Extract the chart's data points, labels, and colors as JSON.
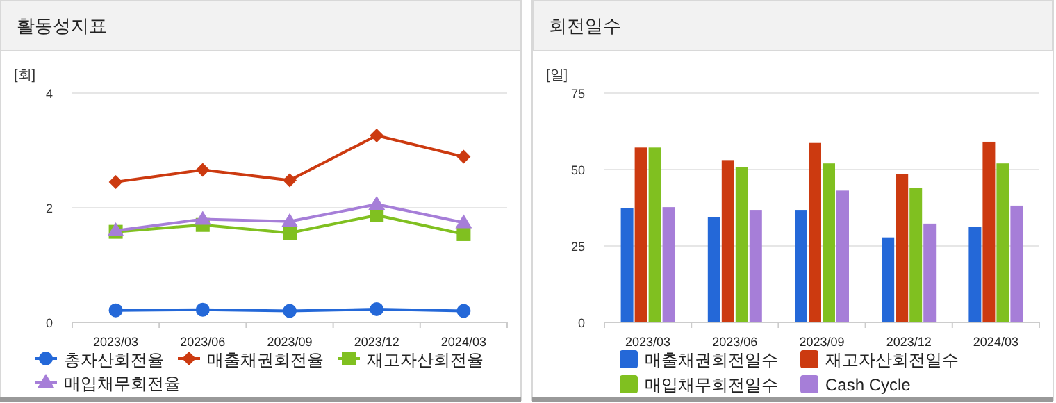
{
  "chart_data": [
    {
      "type": "line",
      "title": "활동성지표",
      "ylabel": "[회]",
      "categories": [
        "2023/03",
        "2023/06",
        "2023/09",
        "2023/12",
        "2024/03"
      ],
      "ylim": [
        0,
        4
      ],
      "yticks": [
        0,
        2,
        4
      ],
      "grid": "y",
      "legend": "bottom",
      "series": [
        {
          "name": "총자산회전율",
          "color": "#2468d8",
          "marker": "circle",
          "values": [
            0.21,
            0.22,
            0.2,
            0.23,
            0.2
          ]
        },
        {
          "name": "매출채권회전율",
          "color": "#cc3a10",
          "marker": "diamond",
          "values": [
            2.45,
            2.66,
            2.48,
            3.26,
            2.89
          ]
        },
        {
          "name": "재고자산회전율",
          "color": "#80c020",
          "marker": "square",
          "values": [
            1.58,
            1.7,
            1.56,
            1.87,
            1.54
          ]
        },
        {
          "name": "매입채무회전율",
          "color": "#a67ed8",
          "marker": "triangle",
          "values": [
            1.6,
            1.8,
            1.76,
            2.06,
            1.74
          ]
        }
      ]
    },
    {
      "type": "bar",
      "title": "회전일수",
      "ylabel": "[일]",
      "categories": [
        "2023/03",
        "2023/06",
        "2023/09",
        "2023/12",
        "2024/03"
      ],
      "ylim": [
        0,
        75
      ],
      "yticks": [
        0,
        25,
        50,
        75
      ],
      "grid": "y",
      "legend": "bottom",
      "series": [
        {
          "name": "매출채권회전일수",
          "color": "#2468d8",
          "values": [
            37.3,
            34.4,
            36.8,
            27.8,
            31.2
          ]
        },
        {
          "name": "재고자산회전일수",
          "color": "#cc3a10",
          "values": [
            57.2,
            53.1,
            58.7,
            48.6,
            59.1
          ]
        },
        {
          "name": "매입채무회전일수",
          "color": "#80c020",
          "values": [
            57.2,
            50.7,
            52.0,
            44.0,
            52.0
          ]
        },
        {
          "name": "Cash Cycle",
          "color": "#a67ed8",
          "values": [
            37.7,
            36.8,
            43.1,
            32.3,
            38.2
          ]
        }
      ]
    }
  ]
}
